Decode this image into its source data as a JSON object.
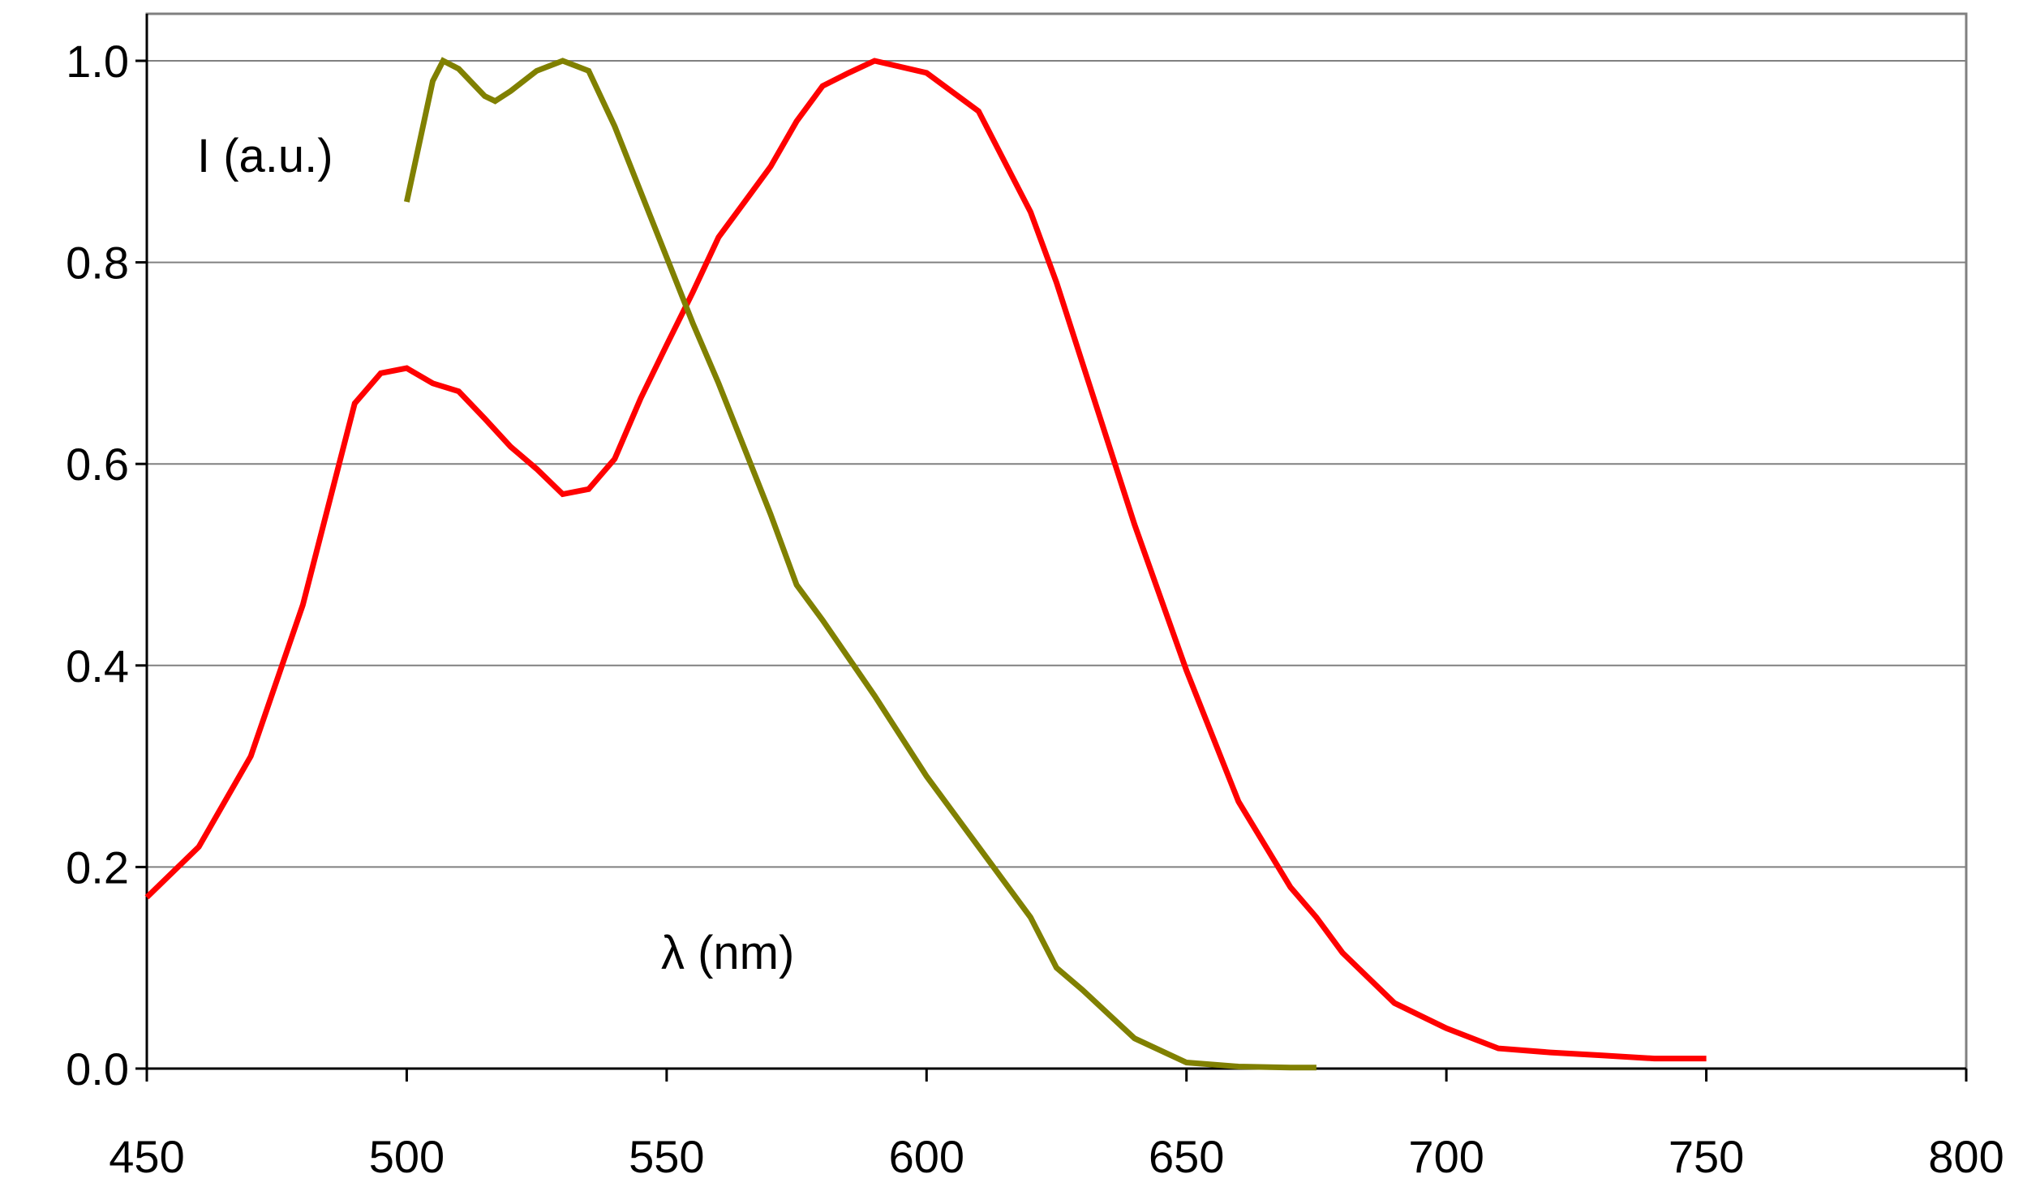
{
  "chart_data": {
    "type": "line",
    "ylabel": "I (a.u.)",
    "xlabel": "λ (nm)",
    "xlim": [
      450,
      800
    ],
    "ylim": [
      0,
      1.0
    ],
    "x_ticks": [
      "450",
      "500",
      "550",
      "600",
      "650",
      "700",
      "750",
      "800"
    ],
    "y_ticks": [
      "0.0",
      "0.2",
      "0.4",
      "0.6",
      "0.8",
      "1.0"
    ],
    "grid": "horizontal",
    "legend": "none",
    "series": [
      {
        "color": "#ff0000",
        "x": [
          450,
          460,
          470,
          480,
          490,
          495,
          500,
          505,
          510,
          515,
          520,
          525,
          530,
          535,
          540,
          545,
          550,
          555,
          560,
          565,
          570,
          575,
          580,
          585,
          590,
          600,
          610,
          615,
          620,
          625,
          630,
          640,
          650,
          660,
          670,
          675,
          680,
          690,
          700,
          710,
          720,
          730,
          740,
          750
        ],
        "y": [
          0.17,
          0.22,
          0.31,
          0.46,
          0.66,
          0.69,
          0.695,
          0.68,
          0.672,
          0.645,
          0.617,
          0.595,
          0.57,
          0.575,
          0.605,
          0.665,
          0.718,
          0.77,
          0.825,
          0.86,
          0.895,
          0.94,
          0.975,
          0.988,
          1.0,
          0.988,
          0.95,
          0.9,
          0.85,
          0.78,
          0.7,
          0.54,
          0.395,
          0.265,
          0.18,
          0.15,
          0.115,
          0.065,
          0.04,
          0.02,
          0.016,
          0.013,
          0.01,
          0.01
        ]
      },
      {
        "color": "#808000",
        "x": [
          500,
          505,
          507,
          510,
          515,
          517,
          520,
          525,
          530,
          535,
          540,
          545,
          550,
          555,
          560,
          565,
          570,
          575,
          580,
          590,
          600,
          610,
          620,
          625,
          630,
          640,
          650,
          660,
          670,
          675
        ],
        "y": [
          0.86,
          0.98,
          1.0,
          0.992,
          0.965,
          0.96,
          0.97,
          0.99,
          1.0,
          0.99,
          0.935,
          0.87,
          0.805,
          0.74,
          0.68,
          0.615,
          0.55,
          0.48,
          0.445,
          0.37,
          0.29,
          0.22,
          0.15,
          0.1,
          0.078,
          0.03,
          0.006,
          0.002,
          0.001,
          0.001
        ]
      }
    ]
  }
}
